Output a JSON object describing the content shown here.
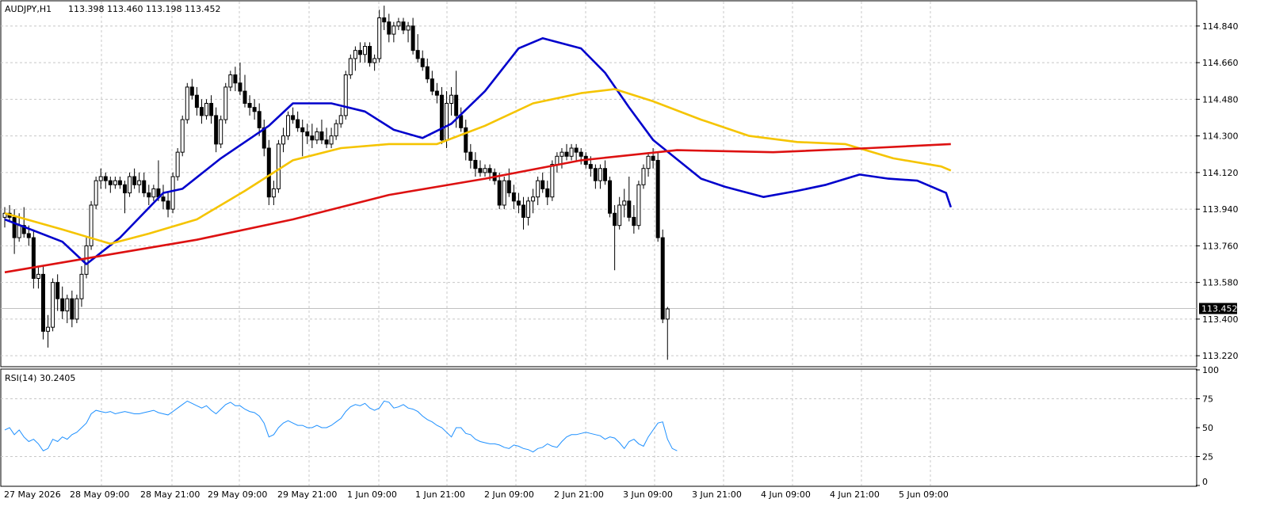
{
  "header": {
    "symbol_tf": "AUDJPY,H1",
    "ohlc": "113.398 113.460 113.198 113.452"
  },
  "rsi_header": {
    "label": "RSI(14) 30.2405"
  },
  "current_price": "113.452",
  "colors": {
    "bull_candle": "#ffffff",
    "bear_candle": "#000000",
    "ma_fast": "#0000cc",
    "ma_mid": "#f5c400",
    "ma_slow": "#dd1111",
    "rsi_line": "#1e90ff",
    "grid": "#c8c8c8"
  },
  "chart_data": {
    "type": "candlestick",
    "title": "AUDJPY,H1",
    "price_axis": {
      "ticks": [
        "114.840",
        "114.660",
        "114.480",
        "114.300",
        "114.120",
        "113.940",
        "113.760",
        "113.580",
        "113.400",
        "113.220"
      ],
      "range": [
        113.17,
        114.96
      ]
    },
    "rsi_axis": {
      "ticks": [
        "100",
        "75",
        "50",
        "25",
        "0"
      ],
      "range": [
        0,
        100
      ]
    },
    "time_labels": [
      "27 May 2026",
      "28 May 09:00",
      "28 May 21:00",
      "29 May 09:00",
      "29 May 21:00",
      "1 Jun 09:00",
      "1 Jun 21:00",
      "2 Jun 09:00",
      "2 Jun 21:00",
      "3 Jun 09:00",
      "3 Jun 21:00",
      "4 Jun 09:00",
      "4 Jun 21:00",
      "5 Jun 09:00"
    ],
    "candles": [
      [
        113.9,
        113.95,
        113.85,
        113.92
      ],
      [
        113.92,
        113.96,
        113.88,
        113.9
      ],
      [
        113.9,
        113.94,
        113.72,
        113.8
      ],
      [
        113.8,
        113.92,
        113.78,
        113.86
      ],
      [
        113.86,
        113.95,
        113.8,
        113.82
      ],
      [
        113.82,
        113.86,
        113.76,
        113.8
      ],
      [
        113.8,
        113.84,
        113.55,
        113.6
      ],
      [
        113.6,
        113.66,
        113.55,
        113.62
      ],
      [
        113.62,
        113.66,
        113.3,
        113.34
      ],
      [
        113.34,
        113.42,
        113.26,
        113.36
      ],
      [
        113.36,
        113.6,
        113.34,
        113.58
      ],
      [
        113.58,
        113.62,
        113.44,
        113.5
      ],
      [
        113.5,
        113.56,
        113.4,
        113.44
      ],
      [
        113.44,
        113.52,
        113.38,
        113.5
      ],
      [
        113.5,
        113.54,
        113.36,
        113.4
      ],
      [
        113.4,
        113.52,
        113.38,
        113.5
      ],
      [
        113.5,
        113.66,
        113.46,
        113.62
      ],
      [
        113.62,
        113.8,
        113.6,
        113.76
      ],
      [
        113.76,
        113.98,
        113.74,
        113.96
      ],
      [
        113.96,
        114.1,
        113.94,
        114.08
      ],
      [
        114.08,
        114.14,
        114.04,
        114.1
      ],
      [
        114.1,
        114.12,
        114.04,
        114.08
      ],
      [
        114.08,
        114.1,
        114.02,
        114.06
      ],
      [
        114.06,
        114.1,
        114.04,
        114.08
      ],
      [
        114.08,
        114.1,
        114.04,
        114.06
      ],
      [
        114.06,
        114.08,
        113.92,
        114.02
      ],
      [
        114.02,
        114.12,
        114.0,
        114.1
      ],
      [
        114.1,
        114.14,
        114.04,
        114.06
      ],
      [
        114.06,
        114.12,
        114.02,
        114.08
      ],
      [
        114.08,
        114.12,
        114.0,
        114.02
      ],
      [
        114.02,
        114.06,
        113.96,
        114.0
      ],
      [
        114.0,
        114.06,
        113.98,
        114.04
      ],
      [
        114.04,
        114.18,
        113.98,
        114.0
      ],
      [
        114.0,
        114.06,
        113.94,
        113.98
      ],
      [
        113.98,
        114.02,
        113.9,
        113.94
      ],
      [
        113.94,
        114.12,
        113.92,
        114.1
      ],
      [
        114.1,
        114.24,
        114.08,
        114.22
      ],
      [
        114.22,
        114.4,
        114.2,
        114.38
      ],
      [
        114.38,
        114.56,
        114.36,
        114.54
      ],
      [
        114.54,
        114.58,
        114.48,
        114.5
      ],
      [
        114.5,
        114.54,
        114.4,
        114.44
      ],
      [
        114.44,
        114.48,
        114.36,
        114.4
      ],
      [
        114.4,
        114.48,
        114.38,
        114.46
      ],
      [
        114.46,
        114.5,
        114.36,
        114.4
      ],
      [
        114.4,
        114.44,
        114.22,
        114.26
      ],
      [
        114.26,
        114.4,
        114.24,
        114.38
      ],
      [
        114.38,
        114.56,
        114.36,
        114.54
      ],
      [
        114.54,
        114.62,
        114.52,
        114.6
      ],
      [
        114.6,
        114.64,
        114.52,
        114.56
      ],
      [
        114.56,
        114.66,
        114.5,
        114.52
      ],
      [
        114.52,
        114.6,
        114.44,
        114.46
      ],
      [
        114.46,
        114.5,
        114.4,
        114.44
      ],
      [
        114.44,
        114.48,
        114.38,
        114.42
      ],
      [
        114.42,
        114.46,
        114.3,
        114.34
      ],
      [
        114.34,
        114.38,
        114.2,
        114.24
      ],
      [
        114.24,
        114.28,
        113.96,
        114.0
      ],
      [
        114.0,
        114.08,
        113.96,
        114.04
      ],
      [
        114.04,
        114.28,
        114.02,
        114.26
      ],
      [
        114.26,
        114.34,
        114.22,
        114.3
      ],
      [
        114.3,
        114.42,
        114.28,
        114.4
      ],
      [
        114.4,
        114.44,
        114.36,
        114.38
      ],
      [
        114.38,
        114.42,
        114.32,
        114.34
      ],
      [
        114.34,
        114.38,
        114.2,
        114.32
      ],
      [
        114.32,
        114.36,
        114.26,
        114.3
      ],
      [
        114.3,
        114.36,
        114.24,
        114.28
      ],
      [
        114.28,
        114.34,
        114.26,
        114.32
      ],
      [
        114.32,
        114.38,
        114.26,
        114.28
      ],
      [
        114.28,
        114.34,
        114.24,
        114.26
      ],
      [
        114.26,
        114.34,
        114.24,
        114.3
      ],
      [
        114.3,
        114.38,
        114.28,
        114.36
      ],
      [
        114.36,
        114.44,
        114.34,
        114.4
      ],
      [
        114.4,
        114.62,
        114.38,
        114.6
      ],
      [
        114.6,
        114.7,
        114.58,
        114.68
      ],
      [
        114.68,
        114.74,
        114.62,
        114.72
      ],
      [
        114.72,
        114.76,
        114.66,
        114.7
      ],
      [
        114.7,
        114.76,
        114.66,
        114.74
      ],
      [
        114.74,
        114.76,
        114.64,
        114.66
      ],
      [
        114.66,
        114.7,
        114.62,
        114.68
      ],
      [
        114.68,
        114.92,
        114.66,
        114.88
      ],
      [
        114.88,
        114.94,
        114.82,
        114.86
      ],
      [
        114.86,
        114.9,
        114.76,
        114.8
      ],
      [
        114.8,
        114.86,
        114.76,
        114.84
      ],
      [
        114.84,
        114.88,
        114.82,
        114.86
      ],
      [
        114.86,
        114.88,
        114.8,
        114.82
      ],
      [
        114.82,
        114.86,
        114.76,
        114.84
      ],
      [
        114.84,
        114.88,
        114.7,
        114.72
      ],
      [
        114.72,
        114.8,
        114.66,
        114.68
      ],
      [
        114.68,
        114.72,
        114.62,
        114.64
      ],
      [
        114.64,
        114.68,
        114.56,
        114.58
      ],
      [
        114.58,
        114.62,
        114.5,
        114.52
      ],
      [
        114.52,
        114.56,
        114.46,
        114.5
      ],
      [
        114.5,
        114.54,
        114.26,
        114.28
      ],
      [
        114.28,
        114.52,
        114.24,
        114.46
      ],
      [
        114.46,
        114.54,
        114.4,
        114.5
      ],
      [
        114.5,
        114.62,
        114.34,
        114.4
      ],
      [
        114.4,
        114.44,
        114.32,
        114.34
      ],
      [
        114.34,
        114.38,
        114.18,
        114.22
      ],
      [
        114.22,
        114.26,
        114.14,
        114.18
      ],
      [
        114.18,
        114.22,
        114.1,
        114.14
      ],
      [
        114.14,
        114.18,
        114.1,
        114.12
      ],
      [
        114.12,
        114.16,
        114.1,
        114.14
      ],
      [
        114.14,
        114.16,
        114.08,
        114.12
      ],
      [
        114.12,
        114.14,
        114.06,
        114.08
      ],
      [
        114.08,
        114.12,
        113.94,
        113.96
      ],
      [
        113.96,
        114.1,
        113.94,
        114.08
      ],
      [
        114.08,
        114.14,
        114.0,
        114.02
      ],
      [
        114.02,
        114.06,
        113.94,
        113.98
      ],
      [
        113.98,
        114.02,
        113.92,
        113.96
      ],
      [
        113.96,
        114.0,
        113.84,
        113.9
      ],
      [
        113.9,
        114.0,
        113.86,
        113.98
      ],
      [
        113.98,
        114.04,
        113.92,
        114.0
      ],
      [
        114.0,
        114.1,
        113.96,
        114.08
      ],
      [
        114.08,
        114.12,
        114.02,
        114.04
      ],
      [
        114.04,
        114.08,
        113.96,
        114.0
      ],
      [
        114.0,
        114.18,
        113.98,
        114.16
      ],
      [
        114.16,
        114.22,
        114.12,
        114.2
      ],
      [
        114.2,
        114.24,
        114.14,
        114.22
      ],
      [
        114.22,
        114.26,
        114.18,
        114.2
      ],
      [
        114.2,
        114.26,
        114.18,
        114.24
      ],
      [
        114.24,
        114.26,
        114.18,
        114.22
      ],
      [
        114.22,
        114.24,
        114.16,
        114.2
      ],
      [
        114.2,
        114.22,
        114.14,
        114.16
      ],
      [
        114.16,
        114.2,
        114.1,
        114.14
      ],
      [
        114.14,
        114.16,
        114.04,
        114.08
      ],
      [
        114.08,
        114.16,
        114.04,
        114.14
      ],
      [
        114.14,
        114.18,
        114.06,
        114.08
      ],
      [
        114.08,
        114.1,
        113.9,
        113.92
      ],
      [
        113.92,
        113.96,
        113.64,
        113.86
      ],
      [
        113.86,
        114.0,
        113.84,
        113.96
      ],
      [
        113.96,
        114.04,
        113.9,
        113.98
      ],
      [
        113.98,
        114.1,
        113.88,
        113.9
      ],
      [
        113.9,
        113.96,
        113.82,
        113.86
      ],
      [
        113.86,
        114.08,
        113.84,
        114.06
      ],
      [
        114.06,
        114.16,
        114.04,
        114.14
      ],
      [
        114.14,
        114.22,
        114.1,
        114.2
      ],
      [
        114.2,
        114.24,
        114.14,
        114.18
      ],
      [
        114.18,
        114.22,
        113.78,
        113.8
      ],
      [
        113.8,
        113.84,
        113.38,
        113.4
      ],
      [
        113.4,
        113.46,
        113.2,
        113.45
      ]
    ],
    "series": [
      {
        "name": "",
        "color": "#0000cc",
        "values": [
          [
            0,
            113.89
          ],
          [
            12,
            113.78
          ],
          [
            17,
            113.67
          ],
          [
            24,
            113.8
          ],
          [
            33,
            114.02
          ],
          [
            37,
            114.04
          ],
          [
            45,
            114.19
          ],
          [
            55,
            114.35
          ],
          [
            60,
            114.46
          ],
          [
            68,
            114.46
          ],
          [
            75,
            114.42
          ],
          [
            81,
            114.33
          ],
          [
            87,
            114.29
          ],
          [
            93,
            114.36
          ],
          [
            100,
            114.52
          ],
          [
            107,
            114.73
          ],
          [
            112,
            114.78
          ],
          [
            120,
            114.73
          ],
          [
            125,
            114.61
          ],
          [
            130,
            114.44
          ],
          [
            135,
            114.28
          ],
          [
            145,
            114.09
          ],
          [
            150,
            114.05
          ],
          [
            158,
            114.0
          ],
          [
            165,
            114.03
          ],
          [
            171,
            114.06
          ],
          [
            178,
            114.11
          ],
          [
            184,
            114.09
          ],
          [
            190,
            114.08
          ],
          [
            196,
            114.02
          ],
          [
            197,
            113.95
          ]
        ]
      },
      {
        "name": "",
        "color": "#f5c400",
        "values": [
          [
            0,
            113.92
          ],
          [
            12,
            113.84
          ],
          [
            22,
            113.77
          ],
          [
            30,
            113.82
          ],
          [
            40,
            113.89
          ],
          [
            50,
            114.03
          ],
          [
            60,
            114.18
          ],
          [
            70,
            114.24
          ],
          [
            80,
            114.26
          ],
          [
            90,
            114.26
          ],
          [
            100,
            114.35
          ],
          [
            110,
            114.46
          ],
          [
            120,
            114.51
          ],
          [
            127,
            114.53
          ],
          [
            135,
            114.47
          ],
          [
            145,
            114.38
          ],
          [
            155,
            114.3
          ],
          [
            165,
            114.27
          ],
          [
            175,
            114.26
          ],
          [
            185,
            114.19
          ],
          [
            195,
            114.15
          ],
          [
            197,
            114.13
          ]
        ]
      },
      {
        "name": "",
        "color": "#dd1111",
        "values": [
          [
            0,
            113.63
          ],
          [
            20,
            113.71
          ],
          [
            40,
            113.79
          ],
          [
            60,
            113.89
          ],
          [
            80,
            114.01
          ],
          [
            100,
            114.09
          ],
          [
            120,
            114.18
          ],
          [
            140,
            114.23
          ],
          [
            160,
            114.22
          ],
          [
            180,
            114.24
          ],
          [
            197,
            114.26
          ]
        ]
      }
    ],
    "rsi": {
      "name": "RSI(14)",
      "values": [
        48,
        50,
        44,
        48,
        42,
        38,
        40,
        36,
        30,
        32,
        40,
        38,
        42,
        40,
        44,
        46,
        50,
        54,
        62,
        65,
        64,
        63,
        64,
        62,
        63,
        64,
        63,
        62,
        62,
        63,
        64,
        65,
        63,
        62,
        61,
        64,
        67,
        70,
        73,
        71,
        69,
        67,
        69,
        65,
        62,
        66,
        70,
        72,
        69,
        69,
        66,
        64,
        63,
        60,
        54,
        42,
        44,
        50,
        54,
        56,
        54,
        52,
        52,
        50,
        50,
        52,
        50,
        50,
        52,
        55,
        58,
        64,
        68,
        70,
        69,
        71,
        67,
        65,
        67,
        73,
        72,
        67,
        68,
        70,
        67,
        66,
        64,
        60,
        57,
        55,
        52,
        50,
        46,
        42,
        50,
        50,
        45,
        44,
        40,
        38,
        37,
        36,
        36,
        35,
        33,
        32,
        35,
        34,
        32,
        31,
        29,
        32,
        33,
        36,
        34,
        33,
        38,
        42,
        44,
        44,
        45,
        46,
        45,
        44,
        43,
        40,
        42,
        41,
        37,
        32,
        38,
        40,
        36,
        34,
        42,
        48,
        54,
        55,
        40,
        32,
        30
      ]
    }
  }
}
